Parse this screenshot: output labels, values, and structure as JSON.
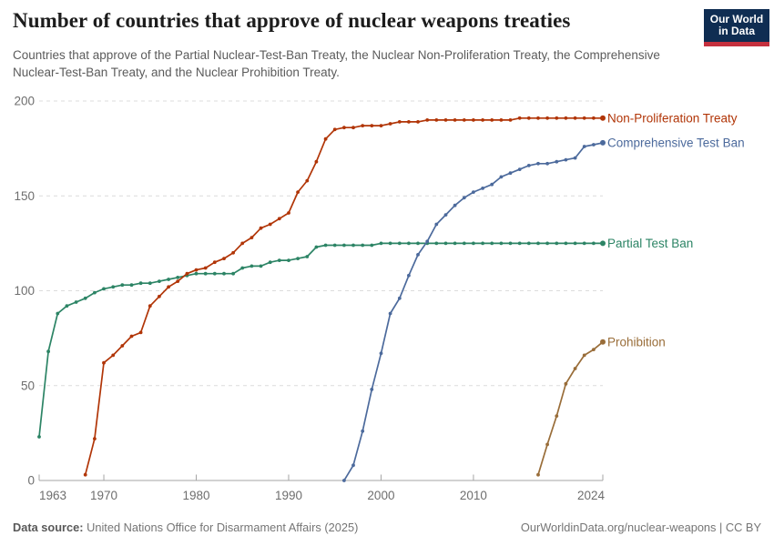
{
  "header": {
    "title": "Number of countries that approve of nuclear weapons treaties",
    "subtitle": "Countries that approve of the Partial Nuclear-Test-Ban Treaty, the Nuclear Non-Proliferation Treaty, the Comprehensive Nuclear-Test-Ban Treaty, and the Nuclear Prohibition Treaty.",
    "logo": {
      "line1": "Our World",
      "line2": "in Data",
      "bg_color": "#0f2d52",
      "bar_color": "#c5303e"
    }
  },
  "footer": {
    "source_label": "Data source:",
    "source_text": " United Nations Office for Disarmament Affairs (2025)",
    "right_text": "OurWorldinData.org/nuclear-weapons | CC BY"
  },
  "chart_data": {
    "type": "line",
    "title": "Number of countries that approve of nuclear weapons treaties",
    "xlabel": "",
    "ylabel": "",
    "grid": "horizontal-dashed",
    "legend_position": "line-end-labels-right",
    "x_axis": {
      "min": 1963,
      "max": 2024,
      "ticks": [
        1963,
        1970,
        1980,
        1990,
        2000,
        2010,
        2024
      ]
    },
    "y_axis": {
      "min": 0,
      "max": 200,
      "ticks": [
        0,
        50,
        100,
        150,
        200
      ]
    },
    "series": [
      {
        "name": "Partial Test Ban",
        "color": "#2C8465",
        "start_year": 1963,
        "values": [
          23,
          68,
          88,
          92,
          94,
          96,
          99,
          101,
          102,
          103,
          103,
          104,
          104,
          105,
          106,
          107,
          108,
          109,
          109,
          109,
          109,
          109,
          112,
          113,
          113,
          115,
          116,
          116,
          117,
          118,
          123,
          124,
          124,
          124,
          124,
          124,
          124,
          125,
          125,
          125,
          125,
          125,
          125,
          125,
          125,
          125,
          125,
          125,
          125,
          125,
          125,
          125,
          125,
          125,
          125,
          125,
          125,
          125,
          125,
          125,
          125,
          125
        ]
      },
      {
        "name": "Non-Proliferation Treaty",
        "color": "#B13507",
        "start_year": 1968,
        "values": [
          3,
          22,
          62,
          66,
          71,
          76,
          78,
          92,
          97,
          102,
          105,
          109,
          111,
          112,
          115,
          117,
          120,
          125,
          128,
          133,
          135,
          138,
          141,
          152,
          158,
          168,
          180,
          185,
          186,
          186,
          187,
          187,
          187,
          188,
          189,
          189,
          189,
          190,
          190,
          190,
          190,
          190,
          190,
          190,
          190,
          190,
          190,
          191,
          191,
          191,
          191,
          191,
          191,
          191,
          191,
          191,
          191
        ]
      },
      {
        "name": "Comprehensive Test Ban",
        "color": "#4C6A9C",
        "start_year": 1996,
        "values": [
          0,
          8,
          26,
          48,
          67,
          88,
          96,
          108,
          119,
          126,
          135,
          140,
          145,
          149,
          152,
          154,
          156,
          160,
          162,
          164,
          166,
          167,
          167,
          168,
          169,
          170,
          176,
          177,
          178
        ]
      },
      {
        "name": "Prohibition",
        "color": "#996D39",
        "start_year": 2017,
        "values": [
          3,
          19,
          34,
          51,
          59,
          66,
          69,
          73
        ]
      }
    ]
  }
}
